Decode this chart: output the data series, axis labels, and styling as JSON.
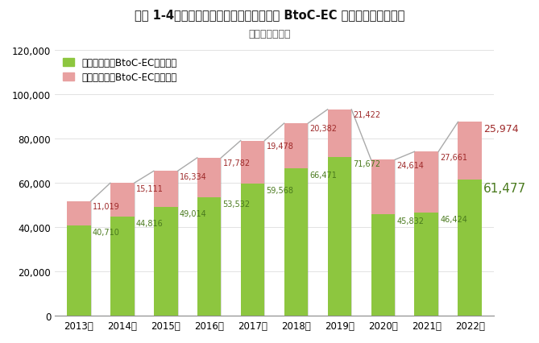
{
  "title": "図表 1-4：サービス系、デジタル系分野の BtoC-EC 市場規模の経年推移",
  "subtitle": "（単位：億円）",
  "years": [
    "2013年",
    "2014年",
    "2015年",
    "2016年",
    "2017年",
    "2018年",
    "2019年",
    "2020年",
    "2021年",
    "2022年"
  ],
  "service_values": [
    40710,
    44816,
    49014,
    53532,
    59568,
    66471,
    71672,
    45832,
    46424,
    61477
  ],
  "digital_values": [
    11019,
    15111,
    16334,
    17782,
    19478,
    20382,
    21422,
    24614,
    27661,
    25974
  ],
  "service_color": "#8dc63f",
  "digital_color": "#e8a0a0",
  "service_label": "サービス分野BtoC-EC市場規模",
  "digital_label": "デジタル分野BtoC-EC市場規模",
  "service_label_color": "#4a7a1e",
  "digital_label_color": "#9e2a2a",
  "ylim": [
    0,
    120000
  ],
  "yticks": [
    0,
    20000,
    40000,
    60000,
    80000,
    100000,
    120000
  ],
  "bar_width": 0.55,
  "background_color": "#ffffff",
  "line_color": "#aaaaaa"
}
